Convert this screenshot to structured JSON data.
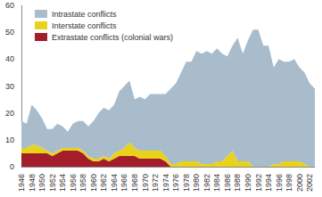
{
  "chart_data": {
    "type": "area",
    "stacked": true,
    "grid": false,
    "legend": "top-left",
    "categories": [
      "1946",
      null,
      "1948",
      null,
      "1950",
      null,
      "1952",
      null,
      "1954",
      null,
      "1956",
      null,
      "1958",
      null,
      "1960",
      null,
      "1962",
      null,
      "1964",
      null,
      "1966",
      null,
      "1968",
      null,
      "1970",
      null,
      "1972",
      null,
      "1974",
      null,
      "1976",
      null,
      "1978",
      null,
      "1980",
      null,
      "1982",
      null,
      "1984",
      null,
      "1986",
      null,
      "1988",
      null,
      "1990",
      null,
      "1992",
      null,
      "1994",
      null,
      "1996",
      null,
      "1998",
      null,
      "2000",
      null,
      "2002",
      null
    ],
    "ylim": [
      0,
      60
    ],
    "yticks": [
      0,
      10,
      20,
      30,
      40,
      50,
      60
    ],
    "series": [
      {
        "name": "Intrastate conflicts",
        "color": "#a9bccb",
        "values": [
          10,
          9,
          15,
          13,
          11,
          8,
          9,
          10,
          8,
          6,
          9,
          10,
          11,
          11,
          14,
          17,
          18,
          18,
          18,
          22,
          23,
          23,
          18,
          20,
          19,
          21,
          21,
          21,
          23,
          28,
          30,
          33,
          37,
          37,
          41,
          41,
          42,
          41,
          42,
          40,
          37,
          39,
          46,
          40,
          45,
          51,
          51,
          45,
          45,
          36,
          39,
          37,
          37,
          38,
          35,
          34,
          31,
          29
        ]
      },
      {
        "name": "Interstate conflicts",
        "color": "#e8d21a",
        "values": [
          2,
          2,
          3,
          3,
          2,
          1,
          1,
          1,
          1,
          1,
          1,
          1,
          1,
          1,
          1,
          1,
          1,
          1,
          2,
          2,
          3,
          5,
          3,
          3,
          3,
          3,
          3,
          3,
          2,
          1,
          1,
          2,
          2,
          2,
          2,
          1,
          1,
          1,
          2,
          2,
          4,
          6,
          2,
          2,
          2,
          0,
          0,
          0,
          0,
          1,
          1,
          2,
          2,
          2,
          2,
          1,
          0,
          0
        ]
      },
      {
        "name": "Extrastate conflicts (colonial wars)",
        "color": "#a31e2a",
        "values": [
          5,
          5,
          5,
          5,
          5,
          5,
          4,
          5,
          6,
          6,
          6,
          6,
          5,
          3,
          2,
          2,
          3,
          2,
          3,
          4,
          4,
          4,
          4,
          3,
          3,
          3,
          3,
          3,
          2,
          0,
          0,
          0,
          0,
          0,
          0,
          0,
          0,
          0,
          0,
          0,
          0,
          0,
          0,
          0,
          0,
          0,
          0,
          0,
          0,
          0,
          0,
          0,
          0,
          0,
          0,
          0,
          0,
          0
        ]
      }
    ]
  }
}
